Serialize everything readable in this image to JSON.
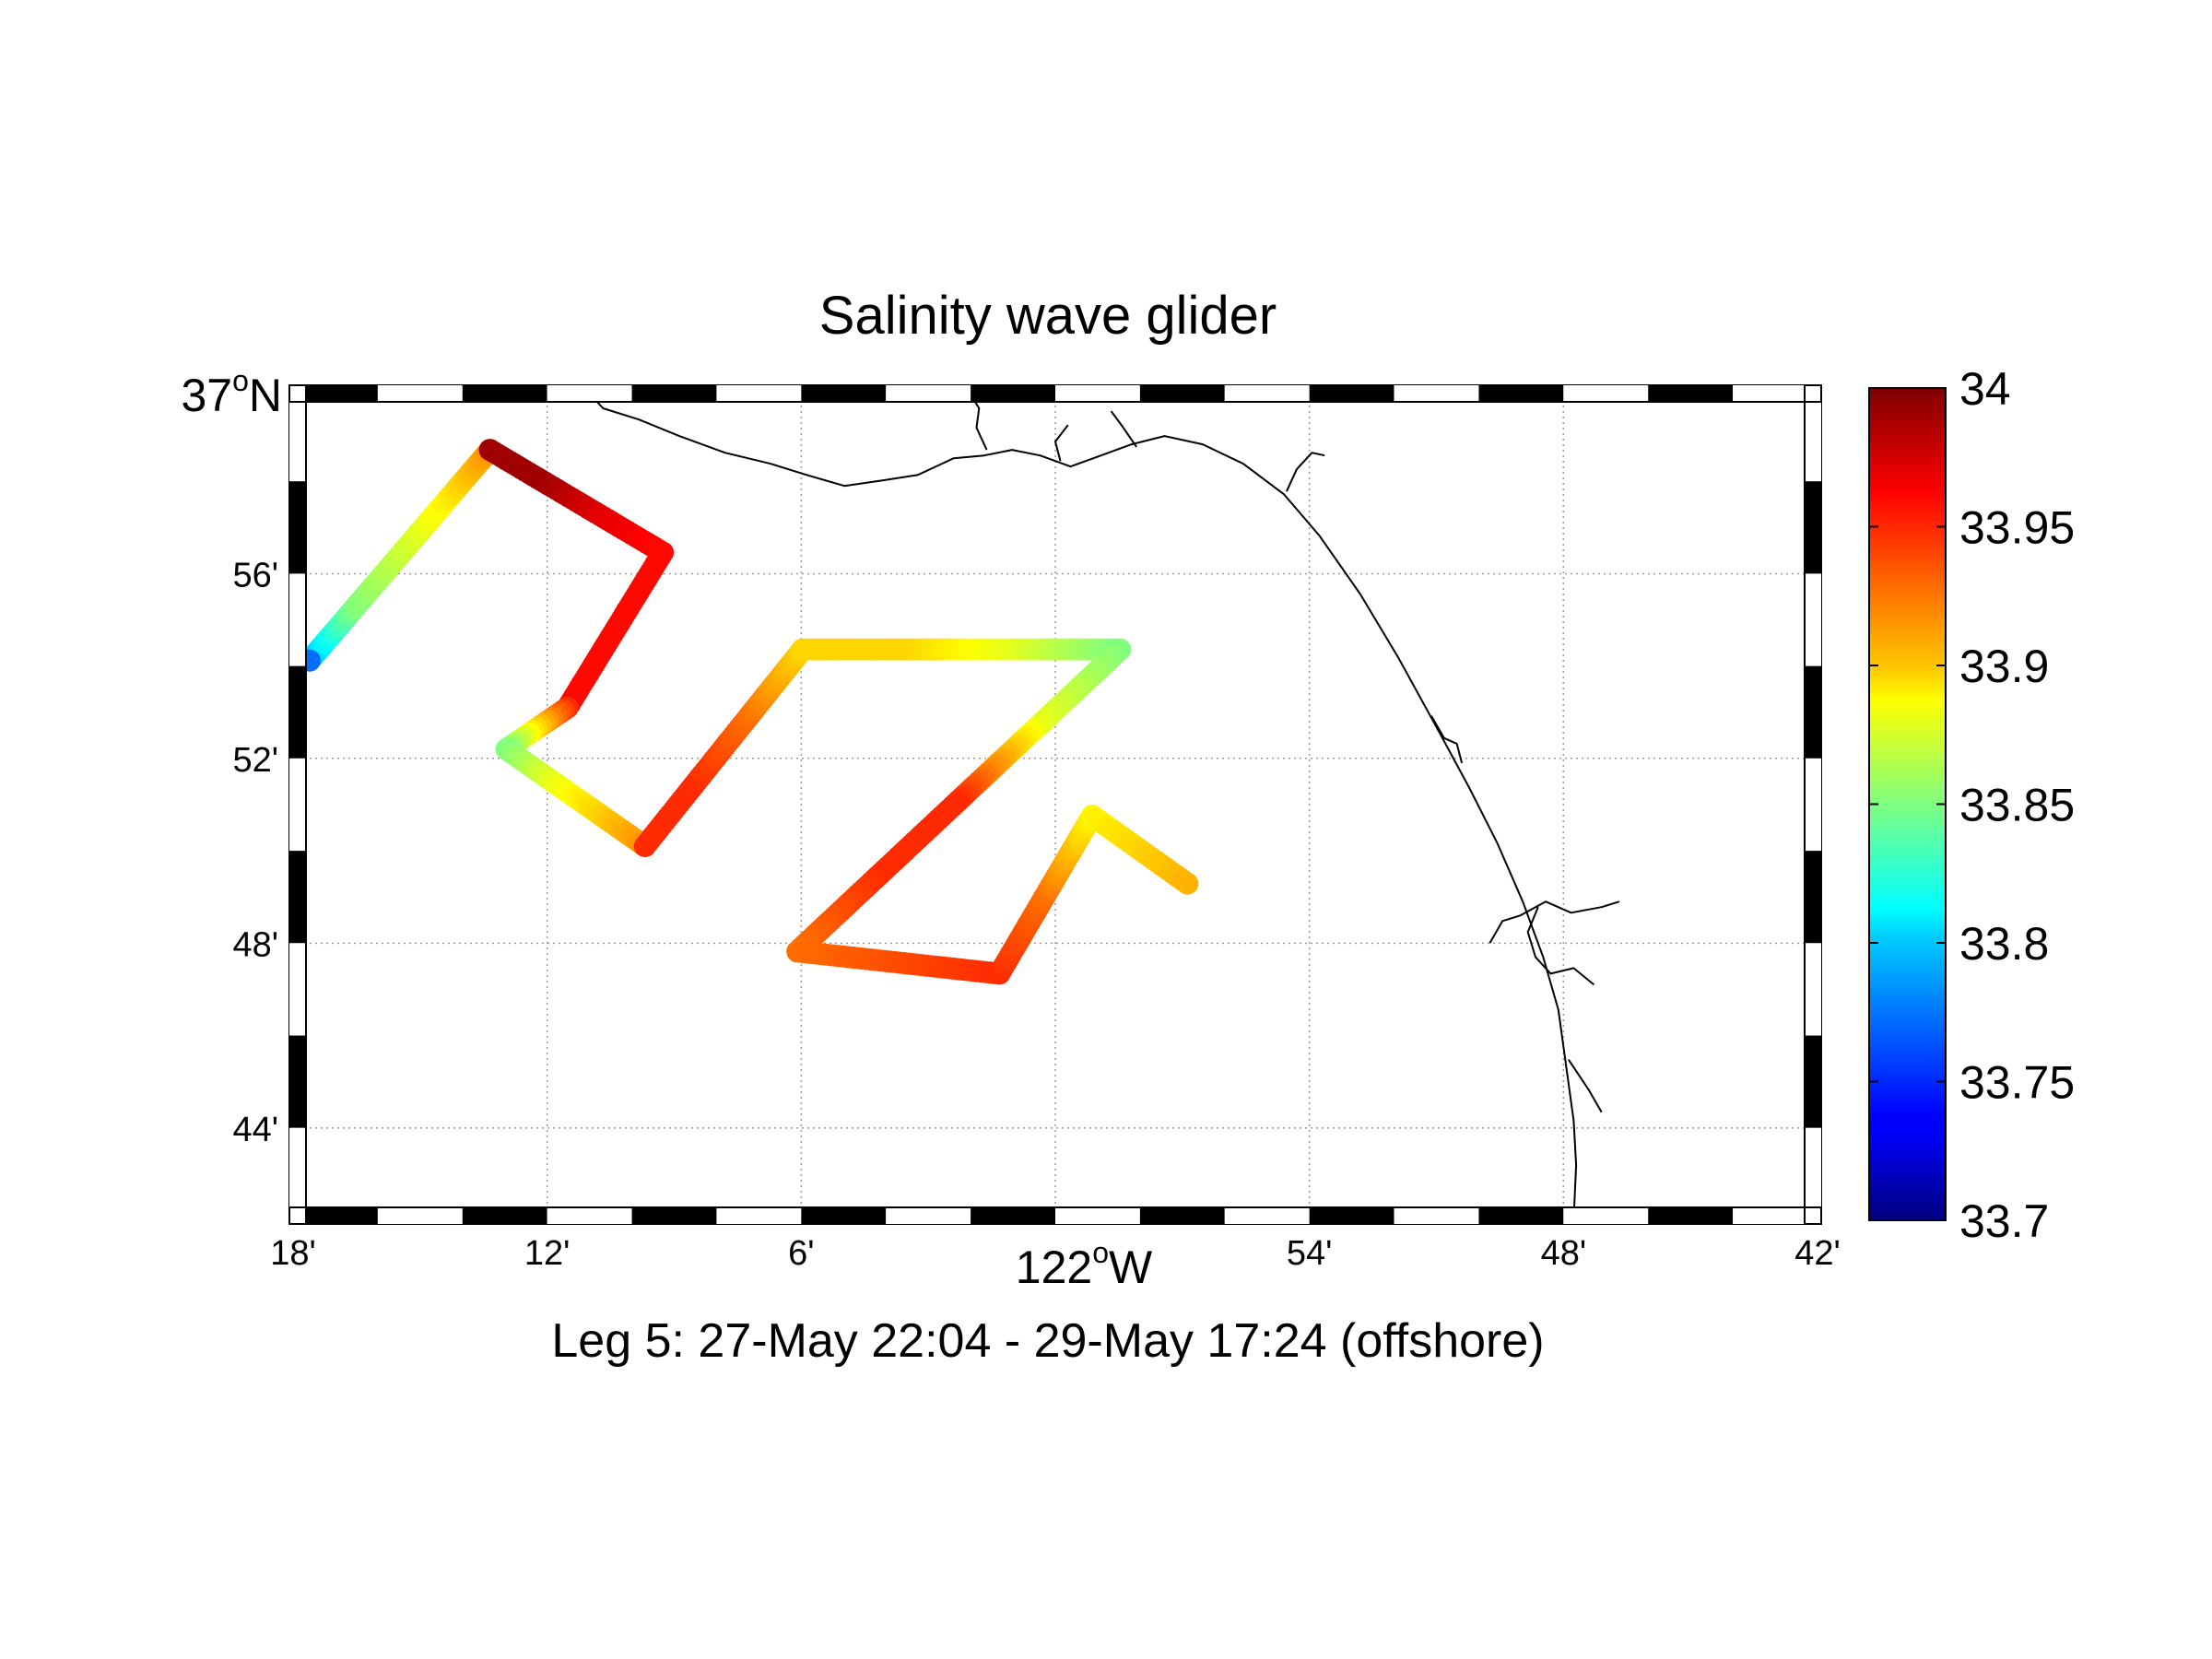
{
  "figure": {
    "title": "Salinity wave glider",
    "subtitle": "Leg 5: 27-May 22:04 - 29-May 17:24 (offshore)",
    "lat_corner_label": {
      "main": "37",
      "sup": "o",
      "suffix": "N"
    },
    "lon_center_label": {
      "main": "122",
      "sup": "o",
      "suffix": "W"
    }
  },
  "chart_data": {
    "type": "scatter",
    "title": "Salinity wave glider",
    "xlim": [
      -122.3,
      -121.7
    ],
    "ylim": [
      36.7,
      37.0
    ],
    "x_ticks": [
      {
        "value": -122.3,
        "label": "18'"
      },
      {
        "value": -122.2,
        "label": "12'"
      },
      {
        "value": -122.1,
        "label": "6'"
      },
      {
        "value": -122.0,
        "label": ""
      },
      {
        "value": -121.9,
        "label": "54'"
      },
      {
        "value": -121.8,
        "label": "48'"
      },
      {
        "value": -121.7,
        "label": "42'"
      }
    ],
    "y_ticks": [
      {
        "value": 36.9333,
        "label": "56'"
      },
      {
        "value": 36.8667,
        "label": "52'"
      },
      {
        "value": 36.8,
        "label": "48'"
      },
      {
        "value": 36.7333,
        "label": "44'"
      }
    ],
    "grid": true,
    "colorbar": {
      "colormap": "jet",
      "range": [
        33.7,
        34.0
      ],
      "ticks": [
        "34",
        "33.95",
        "33.9",
        "33.85",
        "33.8",
        "33.75",
        "33.7"
      ]
    },
    "track_vertices": [
      {
        "lon": -122.2935,
        "lat": 36.902,
        "salinity": 33.77
      },
      {
        "lon": -122.2225,
        "lat": 36.978,
        "salinity": 33.99
      },
      {
        "lon": -122.1545,
        "lat": 36.941,
        "salinity": 33.97
      },
      {
        "lon": -122.192,
        "lat": 36.885,
        "salinity": 33.96
      },
      {
        "lon": -122.216,
        "lat": 36.87,
        "salinity": 33.85
      },
      {
        "lon": -122.1615,
        "lat": 36.835,
        "salinity": 33.91
      },
      {
        "lon": -122.0995,
        "lat": 36.906,
        "salinity": 33.9
      },
      {
        "lon": -121.9745,
        "lat": 36.906,
        "salinity": 33.86
      },
      {
        "lon": -122.1015,
        "lat": 36.797,
        "salinity": 33.93
      },
      {
        "lon": -122.022,
        "lat": 36.789,
        "salinity": 33.95
      },
      {
        "lon": -121.9855,
        "lat": 36.846,
        "salinity": 33.89
      },
      {
        "lon": -121.948,
        "lat": 36.8215,
        "salinity": 33.91
      }
    ],
    "track_segment_colors": [
      [
        33.79,
        33.85,
        33.87,
        33.89,
        33.92
      ],
      [
        33.99,
        33.99,
        33.97,
        33.96
      ],
      [
        33.96,
        33.96,
        33.96
      ],
      [
        33.95,
        33.85
      ],
      [
        33.85,
        33.88,
        33.9,
        33.92
      ],
      [
        33.95,
        33.95,
        33.93,
        33.9
      ],
      [
        33.9,
        33.9,
        33.88,
        33.85
      ],
      [
        33.85,
        33.88,
        33.95,
        33.95,
        33.93
      ],
      [
        33.93,
        33.94,
        33.95
      ],
      [
        33.95,
        33.93,
        33.89
      ],
      [
        33.89,
        33.9,
        33.91
      ]
    ]
  },
  "coastline": {
    "color": "#000000",
    "lines": [
      [
        [
          -122.185,
          37.0
        ],
        [
          -122.178,
          36.993
        ],
        [
          -122.164,
          36.989
        ],
        [
          -122.148,
          36.983
        ],
        [
          -122.13,
          36.977
        ],
        [
          -122.112,
          36.973
        ],
        [
          -122.098,
          36.969
        ],
        [
          -122.083,
          36.965
        ],
        [
          -122.068,
          36.967
        ],
        [
          -122.054,
          36.969
        ],
        [
          -122.04,
          36.975
        ],
        [
          -122.028,
          36.976
        ],
        [
          -122.017,
          36.978
        ],
        [
          -122.006,
          36.976
        ],
        [
          -121.994,
          36.972
        ],
        [
          -121.982,
          36.976
        ],
        [
          -121.97,
          36.98
        ],
        [
          -121.957,
          36.983
        ],
        [
          -121.942,
          36.98
        ],
        [
          -121.926,
          36.973
        ],
        [
          -121.91,
          36.962
        ],
        [
          -121.896,
          36.947
        ],
        [
          -121.88,
          36.926
        ],
        [
          -121.865,
          36.903
        ],
        [
          -121.85,
          36.878
        ],
        [
          -121.837,
          36.856
        ],
        [
          -121.826,
          36.836
        ],
        [
          -121.816,
          36.815
        ],
        [
          -121.808,
          36.795
        ],
        [
          -121.802,
          36.776
        ],
        [
          -121.799,
          36.756
        ],
        [
          -121.796,
          36.736
        ],
        [
          -121.795,
          36.72
        ],
        [
          -121.796,
          36.7
        ]
      ],
      [
        [
          -122.027,
          36.978
        ],
        [
          -122.031,
          36.986
        ],
        [
          -122.03,
          36.993
        ],
        [
          -122.034,
          36.999
        ]
      ],
      [
        [
          -121.998,
          36.974
        ],
        [
          -122.0,
          36.981
        ],
        [
          -121.995,
          36.987
        ]
      ],
      [
        [
          -121.968,
          36.979
        ],
        [
          -121.974,
          36.987
        ],
        [
          -121.978,
          36.992
        ]
      ],
      [
        [
          -121.909,
          36.963
        ],
        [
          -121.905,
          36.971
        ],
        [
          -121.899,
          36.977
        ],
        [
          -121.894,
          36.976
        ]
      ],
      [
        [
          -121.852,
          36.882
        ],
        [
          -121.847,
          36.874
        ],
        [
          -121.842,
          36.872
        ],
        [
          -121.84,
          36.865
        ]
      ],
      [
        [
          -121.829,
          36.8
        ],
        [
          -121.824,
          36.808
        ],
        [
          -121.817,
          36.81
        ],
        [
          -121.807,
          36.815
        ],
        [
          -121.797,
          36.811
        ],
        [
          -121.785,
          36.813
        ],
        [
          -121.778,
          36.815
        ]
      ],
      [
        [
          -121.81,
          36.813
        ],
        [
          -121.814,
          36.804
        ],
        [
          -121.811,
          36.795
        ],
        [
          -121.805,
          36.789
        ],
        [
          -121.796,
          36.791
        ],
        [
          -121.788,
          36.785
        ]
      ],
      [
        [
          -121.798,
          36.758
        ],
        [
          -121.79,
          36.747
        ],
        [
          -121.785,
          36.739
        ]
      ]
    ]
  }
}
